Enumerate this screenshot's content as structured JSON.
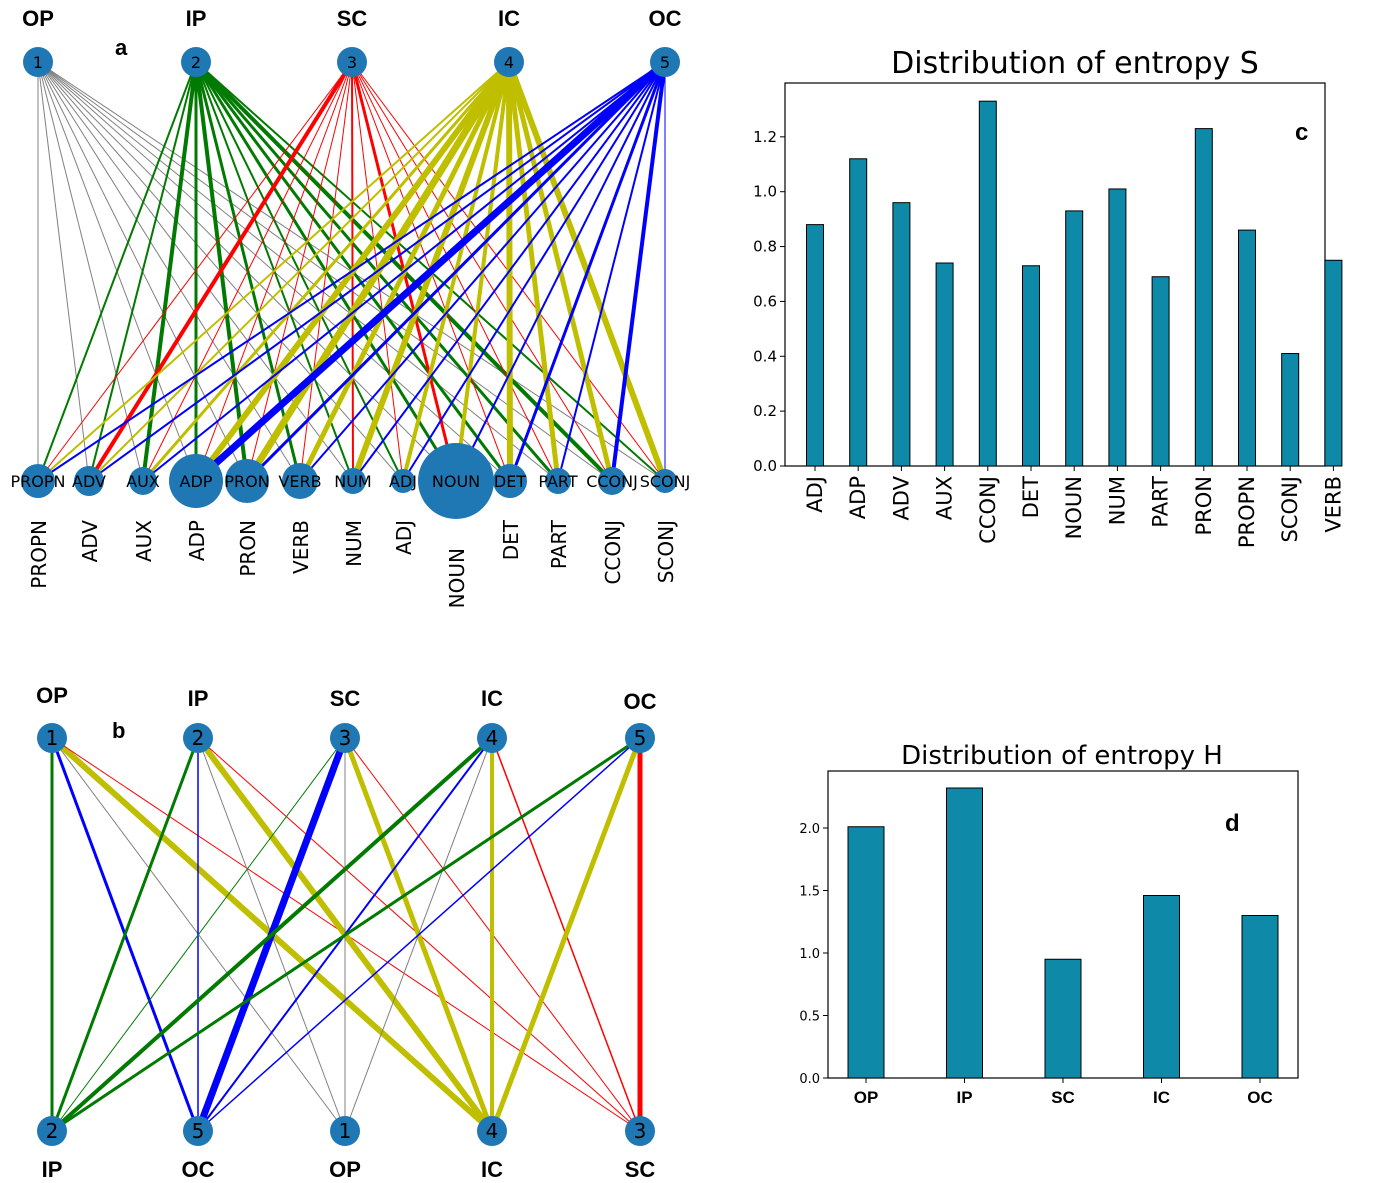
{
  "panels": {
    "a": {
      "letter": "a",
      "groups": [
        "OP",
        "IP",
        "SC",
        "IC",
        "OC"
      ],
      "group_numbers": [
        "1",
        "2",
        "3",
        "4",
        "5"
      ],
      "pos_nodes": [
        "PROPN",
        "ADV",
        "AUX",
        "ADP",
        "PRON",
        "VERB",
        "NUM",
        "ADJ",
        "NOUN",
        "DET",
        "PART",
        "CCONJ",
        "SCONJ"
      ]
    },
    "b": {
      "letter": "b",
      "groups": [
        "OP",
        "IP",
        "SC",
        "IC",
        "OC"
      ],
      "group_numbers": [
        "1",
        "2",
        "3",
        "4",
        "5"
      ],
      "bottom_nodes": [
        {
          "number": "2",
          "label": "IP"
        },
        {
          "number": "5",
          "label": "OC"
        },
        {
          "number": "1",
          "label": "OP"
        },
        {
          "number": "4",
          "label": "IC"
        },
        {
          "number": "3",
          "label": "SC"
        }
      ]
    },
    "c": {
      "letter": "c"
    },
    "d": {
      "letter": "d"
    }
  },
  "colors": {
    "bar": "#0e8aa8",
    "node": "#1f77b4",
    "green": "#007a00",
    "red": "#ff0000",
    "olive": "#bfbf00",
    "blue": "#0000ff",
    "gray": "#808080"
  },
  "chart_data": [
    {
      "type": "bar",
      "title": "Distribution of entropy S",
      "categories": [
        "ADJ",
        "ADP",
        "ADV",
        "AUX",
        "CCONJ",
        "DET",
        "NOUN",
        "NUM",
        "PART",
        "PRON",
        "PROPN",
        "SCONJ",
        "VERB"
      ],
      "values": [
        0.88,
        1.12,
        0.96,
        0.74,
        1.33,
        0.73,
        0.93,
        1.01,
        0.69,
        1.23,
        0.86,
        0.41,
        0.75
      ],
      "yticks": [
        "0.0",
        "0.2",
        "0.4",
        "0.6",
        "0.8",
        "1.0",
        "1.2"
      ],
      "ylim": [
        0,
        1.4
      ]
    },
    {
      "type": "bar",
      "title": "Distribution of entropy H",
      "categories": [
        "OP",
        "IP",
        "SC",
        "IC",
        "OC"
      ],
      "values": [
        2.01,
        2.32,
        0.95,
        1.46,
        1.3
      ],
      "yticks": [
        "0.0",
        "0.5",
        "1.0",
        "1.5",
        "2.0"
      ],
      "ylim": [
        0,
        2.4
      ]
    }
  ]
}
